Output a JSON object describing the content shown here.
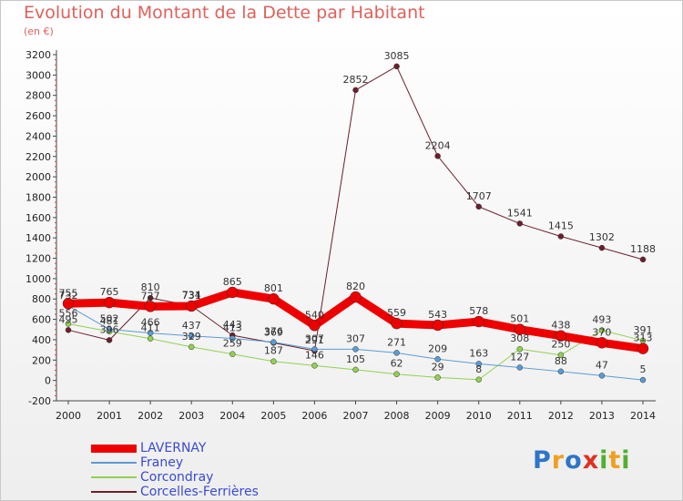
{
  "chart_data": {
    "type": "line",
    "title": "Evolution du Montant de la Dette par Habitant",
    "subtitle": "(en €)",
    "categories": [
      "2000",
      "2001",
      "2002",
      "2003",
      "2004",
      "2005",
      "2006",
      "2007",
      "2008",
      "2009",
      "2010",
      "2011",
      "2012",
      "2013",
      "2014"
    ],
    "ylim": [
      -200,
      3200
    ],
    "yticks": [
      -200,
      0,
      200,
      400,
      600,
      800,
      1000,
      1200,
      1400,
      1600,
      1800,
      2000,
      2200,
      2400,
      2600,
      2800,
      3000,
      3200
    ],
    "grid": false,
    "legend_position": "bottom-left",
    "series": [
      {
        "name": "LAVERNAY",
        "color": "#ee0000",
        "values": [
          755,
          765,
          727,
          731,
          865,
          801,
          540,
          820,
          559,
          543,
          578,
          501,
          438,
          370,
          313
        ]
      },
      {
        "name": "Franey",
        "color": "#5b9bd5",
        "values": [
          732,
          502,
          466,
          437,
          413,
          376,
          307,
          307,
          271,
          209,
          163,
          127,
          88,
          47,
          5
        ]
      },
      {
        "name": "Corcondray",
        "color": "#92d050",
        "values": [
          556,
          481,
          411,
          329,
          259,
          187,
          146,
          105,
          62,
          29,
          8,
          308,
          250,
          493,
          391
        ]
      },
      {
        "name": "Corcelles-Ferrières",
        "color": "#6b1f2a",
        "values": [
          495,
          396,
          810,
          734,
          443,
          369,
          291,
          2852,
          3085,
          2204,
          1707,
          1541,
          1415,
          1302,
          1188
        ]
      }
    ],
    "labels": {
      "LAVERNAY": [
        "755",
        "765",
        "727",
        "731",
        "865",
        "801",
        "540",
        "820",
        "559",
        "543",
        "578",
        "501",
        "438",
        "370",
        "313"
      ],
      "Franey": [
        "732",
        "502",
        "466",
        "437",
        "413",
        "376",
        "307",
        "307",
        "271",
        "209",
        "163",
        "127",
        "88",
        "47",
        "5"
      ],
      "Corcondray": [
        "556",
        "481",
        "411",
        "329",
        "259",
        "187",
        "146",
        "105",
        "62",
        "29",
        "8",
        "308",
        "250",
        "493",
        "391"
      ],
      "Corcelles-Ferrières": [
        "495",
        "396",
        "810",
        "734",
        "443",
        "369",
        "291",
        "2852",
        "3085",
        "2204",
        "1707",
        "1541",
        "1415",
        "1302",
        "1188"
      ]
    }
  },
  "logo": {
    "text": "Proxiti",
    "letters": [
      "P",
      "r",
      "o",
      "x",
      "i",
      "t",
      "i"
    ],
    "colors": [
      "#2e75c8",
      "#f0a020",
      "#2e75c8",
      "#e03020",
      "#50b030",
      "#f0a020",
      "#50b030"
    ]
  }
}
